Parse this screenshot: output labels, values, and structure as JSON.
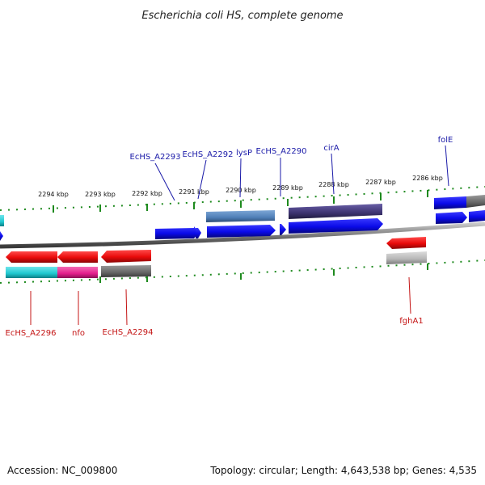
{
  "map_title": "Escherichia coli HS, complete genome",
  "footer": {
    "accession": "Accession: NC_009800",
    "summary": "Topology: circular; Length: 4,643,538 bp; Genes: 4,535"
  },
  "ruler": {
    "top_ticks": [
      "2294 kbp",
      "2293 kbp",
      "2292 kbp",
      "2291 kbp",
      "2290 kbp",
      "2289 kbp",
      "2288 kbp",
      "2287 kbp",
      "2286 kbp"
    ]
  },
  "genes_top": [
    "EcHS_A2293",
    "EcHS_A2292",
    "lysP",
    "EcHS_A2290",
    "cirA",
    "folE"
  ],
  "genes_bottom": [
    "EcHS_A2296",
    "nfo",
    "EcHS_A2294",
    "fghA1"
  ],
  "colors": {
    "forward_cds": "#0a0ae8",
    "reverse_cds": "#e80a0a",
    "cog_steelblue": "#4f7fb7",
    "cog_darkpurple": "#3c3370",
    "cog_cyan": "#1fc7cf",
    "cog_magenta": "#e31e8c",
    "cog_gray": "#666666",
    "cog_lightgray": "#b5b5b5",
    "tick_green": "#1e8a1e",
    "backbone": "#7a7a7a"
  }
}
